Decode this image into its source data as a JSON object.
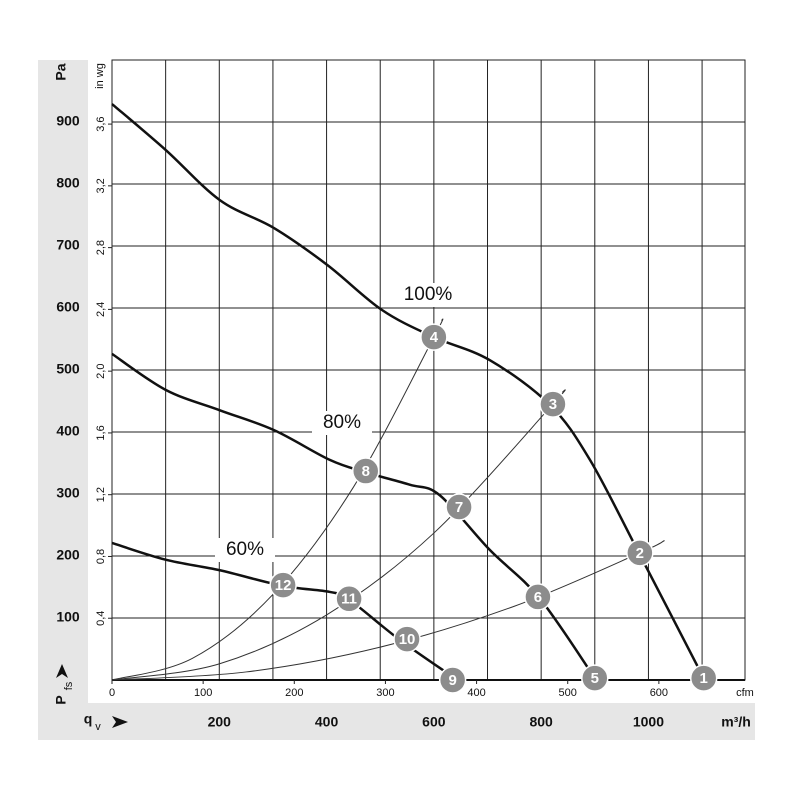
{
  "chart_data": {
    "type": "line",
    "y_label": "Pa",
    "y2_label": "in wg",
    "x_label": "m³/h",
    "x2_label": "cfm",
    "y_axis_symbol": {
      "text": "P",
      "subscript": "fs"
    },
    "x_axis_symbol": {
      "text": "q",
      "subscript": "v"
    },
    "xlim": [
      0,
      1180
    ],
    "xticks": [
      200,
      400,
      600,
      800,
      1000
    ],
    "xgrid": [
      100,
      200,
      300,
      400,
      500,
      600,
      700,
      800,
      900,
      1000,
      1100
    ],
    "x2lim": [
      0,
      694.5
    ],
    "x2ticks": [
      0,
      100,
      200,
      300,
      400,
      500,
      600
    ],
    "ylim": [
      0,
      1000
    ],
    "yticks": [
      100,
      200,
      300,
      400,
      500,
      600,
      700,
      800,
      900
    ],
    "y2lim": [
      0,
      4.015
    ],
    "y2ticks": [
      {
        "value": 0.4,
        "label": "0,4"
      },
      {
        "value": 0.8,
        "label": "0,8"
      },
      {
        "value": 1.2,
        "label": "1,2"
      },
      {
        "value": 1.6,
        "label": "1,6"
      },
      {
        "value": 2.0,
        "label": "2,0"
      },
      {
        "value": 2.4,
        "label": "2,4"
      },
      {
        "value": 2.8,
        "label": "2,8"
      },
      {
        "value": 3.2,
        "label": "3,2"
      },
      {
        "value": 3.6,
        "label": "3,6"
      }
    ],
    "grid": true,
    "series": [
      {
        "name": "100%",
        "color": "#111111",
        "x": [
          0,
          100,
          201,
          302,
          402,
          503,
          600,
          704,
          816,
          891,
          984,
          1103
        ],
        "values": [
          929,
          855,
          774,
          729,
          669,
          597,
          553,
          516,
          444,
          355,
          202,
          3
        ]
      },
      {
        "name": "80%",
        "color": "#111111",
        "x": [
          0,
          100,
          201,
          302,
          406,
          473,
          555,
          611,
          704,
          797,
          900
        ],
        "values": [
          526,
          468,
          435,
          403,
          355,
          335,
          315,
          298,
          210,
          132,
          3
        ]
      },
      {
        "name": "60%",
        "color": "#111111",
        "x": [
          0,
          100,
          201,
          317,
          406,
          443,
          536,
          639
        ],
        "values": [
          221,
          194,
          177,
          152,
          142,
          129,
          65,
          3
        ]
      }
    ],
    "system_curves": [
      {
        "color": "#333333",
        "x": [
          0,
          150,
          300,
          450,
          600,
          615
        ],
        "values": [
          0,
          35,
          138,
          311,
          553,
          581
        ]
      },
      {
        "color": "#333333",
        "x": [
          0,
          200,
          400,
          600,
          822,
          840
        ],
        "values": [
          0,
          26,
          105,
          237,
          445,
          465
        ]
      },
      {
        "color": "#333333",
        "x": [
          0,
          250,
          500,
          750,
          984,
          1030
        ],
        "values": [
          0,
          13,
          53,
          119,
          205,
          225
        ]
      }
    ],
    "operating_points": {
      "color": "#8c8c8c",
      "labels": [
        "1",
        "2",
        "3",
        "4",
        "5",
        "6",
        "7",
        "8",
        "9",
        "10",
        "11",
        "12"
      ],
      "x": [
        1103,
        984,
        822,
        600,
        900,
        794,
        647,
        473,
        635,
        550,
        442,
        319
      ],
      "values": [
        3,
        205,
        445,
        553,
        3,
        134,
        279,
        337,
        0,
        66,
        131,
        153
      ]
    }
  }
}
